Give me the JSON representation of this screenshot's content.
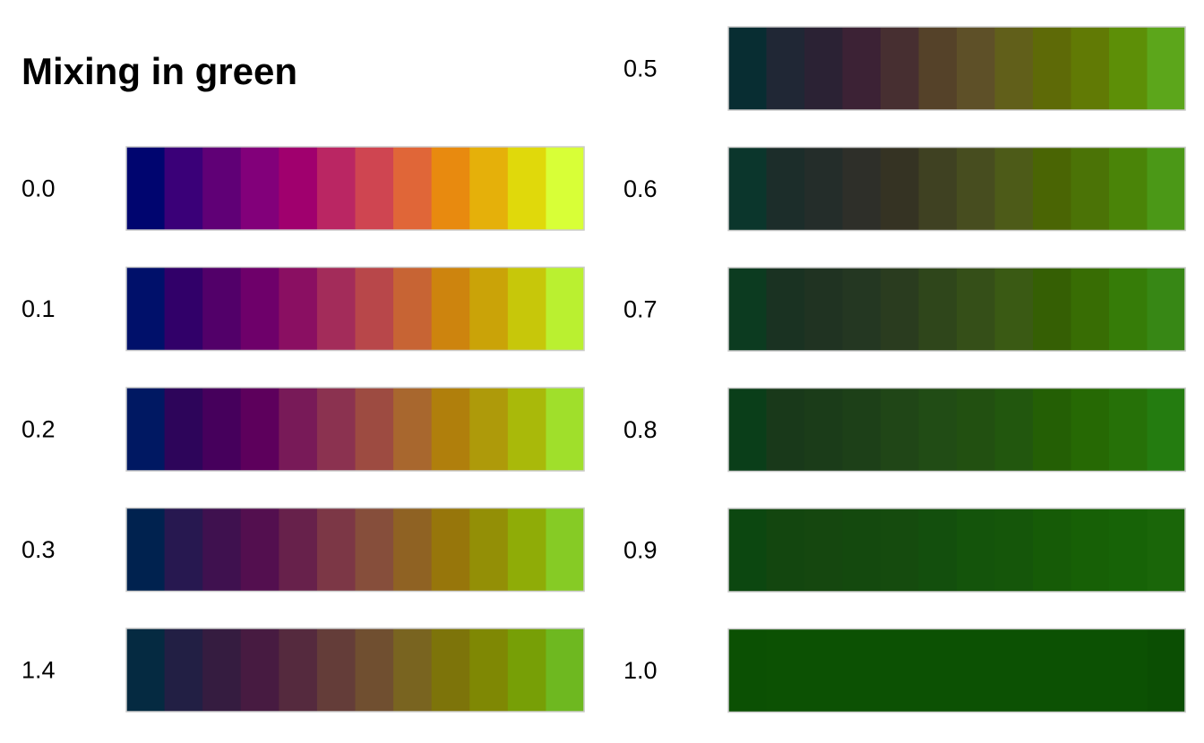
{
  "chart_data": {
    "type": "heatmap",
    "title": "Mixing in green",
    "colors": {
      "background": "#ffffff",
      "border": "#cccccc"
    },
    "panels": [
      {
        "column": "left",
        "rows": [
          {
            "label": "0.0",
            "swatches": [
              "#00056f",
              "#3a0078",
              "#600076",
              "#82007a",
              "#a0006e",
              "#ba2663",
              "#cf4551",
              "#e06638",
              "#e88a0f",
              "#e5b00a",
              "#e0d90b",
              "#d8ff37"
            ]
          },
          {
            "label": "0.1",
            "swatches": [
              "#00106a",
              "#310069",
              "#520069",
              "#6e006a",
              "#8a0f62",
              "#a32c5a",
              "#b8474a",
              "#c76434",
              "#cd840e",
              "#caa308",
              "#c7c70a",
              "#baf030"
            ]
          },
          {
            "label": "0.2",
            "swatches": [
              "#001862",
              "#2d055a",
              "#46005c",
              "#5d005c",
              "#781a58",
              "#8b3250",
              "#9d4b41",
              "#a8672e",
              "#b07f0c",
              "#ae9a0a",
              "#a9b90a",
              "#a0df2b"
            ]
          },
          {
            "label": "0.3",
            "swatches": [
              "#00224f",
              "#271850",
              "#3f114f",
              "#530f4f",
              "#67214b",
              "#7c3746",
              "#864e3b",
              "#8f6223",
              "#97760b",
              "#938f06",
              "#8fac07",
              "#86cb25"
            ]
          },
          {
            "label": "1.4",
            "swatches": [
              "#052a41",
              "#221f44",
              "#351c40",
              "#471b41",
              "#552a3e",
              "#643d39",
              "#704f30",
              "#796420",
              "#7d740a",
              "#7f8804",
              "#779f06",
              "#6eb820"
            ]
          }
        ]
      },
      {
        "column": "right",
        "rows": [
          {
            "label": "0.5",
            "swatches": [
              "#082d32",
              "#202735",
              "#2b2234",
              "#3c2235",
              "#472f31",
              "#554229",
              "#5e5028",
              "#615f1a",
              "#5e6a07",
              "#617a05",
              "#5d8f07",
              "#5ca61b"
            ]
          },
          {
            "label": "0.6",
            "swatches": [
              "#0b362c",
              "#1c2d2a",
              "#242d2a",
              "#2e2f29",
              "#353323",
              "#3f4122",
              "#474d1f",
              "#4d5b18",
              "#4a6504",
              "#4b7306",
              "#4a8408",
              "#4b9817"
            ]
          },
          {
            "label": "0.7",
            "swatches": [
              "#0c3b20",
              "#1a3222",
              "#203322",
              "#243722",
              "#2a3c1f",
              "#2f461b",
              "#354f18",
              "#3a5a14",
              "#355f04",
              "#386d04",
              "#367c08",
              "#378715"
            ]
          },
          {
            "label": "0.8",
            "swatches": [
              "#0a3e19",
              "#19391a",
              "#1b3c19",
              "#1d4018",
              "#204617",
              "#214c15",
              "#225011",
              "#22570e",
              "#245f05",
              "#266904",
              "#267108",
              "#247c10"
            ]
          },
          {
            "label": "0.9",
            "swatches": [
              "#0c4710",
              "#13460f",
              "#15470f",
              "#14490e",
              "#154b0e",
              "#134f0d",
              "#14540b",
              "#15560a",
              "#165b07",
              "#176006",
              "#176307",
              "#1a6609"
            ]
          },
          {
            "label": "1.0",
            "swatches": [
              "#0b5003",
              "#0c5103",
              "#0c5103",
              "#0c5103",
              "#0c5103",
              "#0c5103",
              "#0c5103",
              "#0c5103",
              "#0c5103",
              "#0c5103",
              "#0c5103",
              "#0b4e03"
            ]
          }
        ]
      }
    ]
  }
}
